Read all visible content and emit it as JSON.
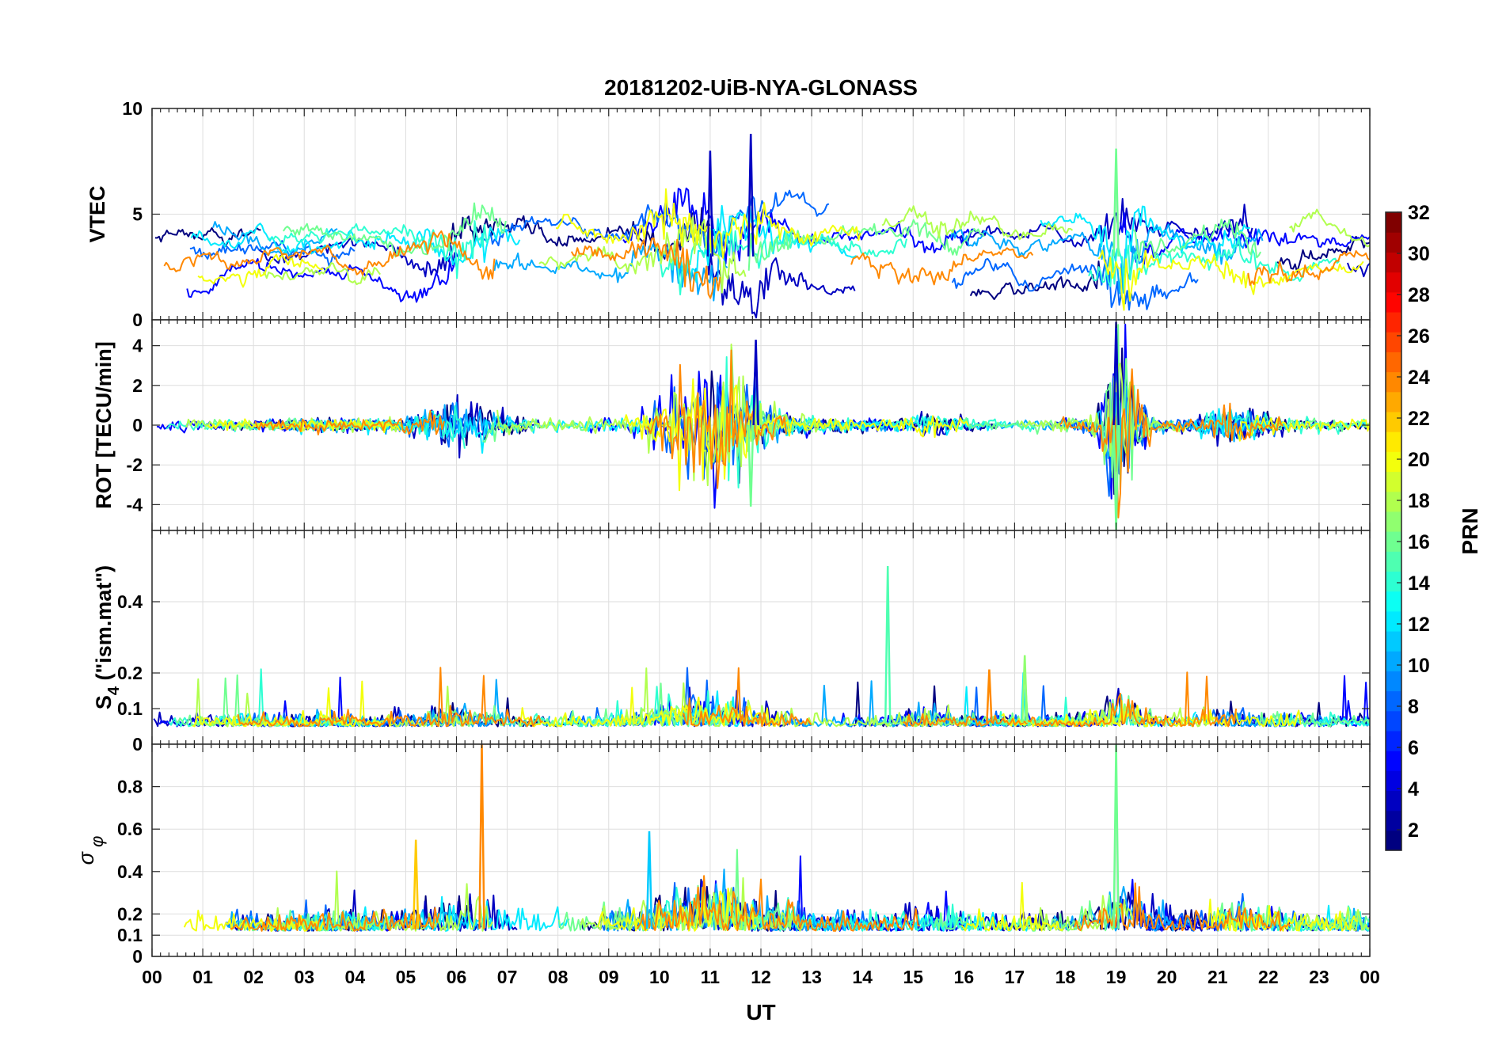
{
  "chart_data": {
    "type": "line",
    "title": "20181202-UiB-NYA-GLONASS",
    "xlabel": "UT",
    "x_tick_labels": [
      "00",
      "01",
      "02",
      "03",
      "04",
      "05",
      "06",
      "07",
      "08",
      "09",
      "10",
      "11",
      "12",
      "13",
      "14",
      "15",
      "16",
      "17",
      "18",
      "19",
      "20",
      "21",
      "22",
      "23",
      "00"
    ],
    "xlim": [
      0,
      24
    ],
    "grid": true,
    "colorbar": {
      "label": "PRN",
      "range": [
        1,
        32
      ],
      "tick_labels": [
        "2",
        "4",
        "6",
        "8",
        "10",
        "12",
        "14",
        "16",
        "18",
        "20",
        "22",
        "24",
        "26",
        "28",
        "30",
        "32"
      ],
      "tick_values": [
        2,
        4,
        6,
        8,
        10,
        12,
        14,
        16,
        18,
        20,
        22,
        24,
        26,
        28,
        30,
        32
      ],
      "colormap": "jet"
    },
    "panels": [
      {
        "name": "vtec",
        "ylabel": "VTEC",
        "ylim": [
          0,
          10
        ],
        "y_ticks": [
          0,
          5,
          10
        ],
        "y_tick_labels": [
          "0",
          "5",
          "10"
        ],
        "notable_peaks": [
          {
            "ut": 11.8,
            "value": 8.8
          },
          {
            "ut": 19.0,
            "value": 8.1
          },
          {
            "ut": 11.0,
            "value": 8.0
          }
        ],
        "typical_range": [
          1,
          6
        ]
      },
      {
        "name": "rot",
        "ylabel": "ROT [TECU/min]",
        "ylim": [
          -5.3,
          5.3
        ],
        "y_ticks": [
          -4,
          -2,
          0,
          2,
          4
        ],
        "y_tick_labels": [
          "-4",
          "-2",
          "0",
          "2",
          "4"
        ],
        "notable_peaks": [
          {
            "ut": 19.0,
            "value": 5.2
          },
          {
            "ut": 19.0,
            "value": -5.3
          },
          {
            "ut": 11.9,
            "value": 4.3
          },
          {
            "ut": 11.8,
            "value": -4.1
          }
        ],
        "typical_range": [
          -0.5,
          0.5
        ]
      },
      {
        "name": "s4",
        "ylabel": "S4 (\"ism.mat\")",
        "ylabel_main": "S",
        "ylabel_sub": "4",
        "ylabel_rest": " (\"ism.mat\")",
        "ylim": [
          0,
          0.6
        ],
        "y_ticks": [
          0,
          0.1,
          0.2,
          0.4
        ],
        "y_tick_labels": [
          "0",
          "0.1",
          "0.2",
          "0.4"
        ],
        "notable_peaks": [
          {
            "ut": 14.5,
            "value": 0.5,
            "prn": 15
          },
          {
            "ut": 17.2,
            "value": 0.25,
            "prn": 17
          },
          {
            "ut": 16.5,
            "value": 0.21,
            "prn": 24
          }
        ],
        "typical_range": [
          0.03,
          0.1
        ]
      },
      {
        "name": "sigma_phi",
        "ylabel": "σ φ",
        "ylabel_main": "σ",
        "ylabel_sub": "φ",
        "ylim": [
          0,
          1
        ],
        "y_ticks": [
          0,
          0.1,
          0.2,
          0.4,
          0.6,
          0.8
        ],
        "y_tick_labels": [
          "0",
          "0.1",
          "0.2",
          "0.4",
          "0.6",
          "0.8"
        ],
        "notable_peaks": [
          {
            "ut": 6.5,
            "value": 1.0,
            "prn": 24
          },
          {
            "ut": 19.0,
            "value": 1.0,
            "prn": 16
          },
          {
            "ut": 5.2,
            "value": 0.55,
            "prn": 22
          },
          {
            "ut": 9.8,
            "value": 0.59,
            "prn": 11
          }
        ],
        "typical_range": [
          0.08,
          0.25
        ]
      }
    ],
    "series": [
      {
        "prn": 1,
        "name": "PRN 1"
      },
      {
        "prn": 3,
        "name": "PRN 3"
      },
      {
        "prn": 5,
        "name": "PRN 5"
      },
      {
        "prn": 8,
        "name": "PRN 8"
      },
      {
        "prn": 10,
        "name": "PRN 10"
      },
      {
        "prn": 12,
        "name": "PRN 12"
      },
      {
        "prn": 14,
        "name": "PRN 14"
      },
      {
        "prn": 16,
        "name": "PRN 16"
      },
      {
        "prn": 18,
        "name": "PRN 18"
      },
      {
        "prn": 20,
        "name": "PRN 20"
      },
      {
        "prn": 24,
        "name": "PRN 24"
      }
    ]
  }
}
